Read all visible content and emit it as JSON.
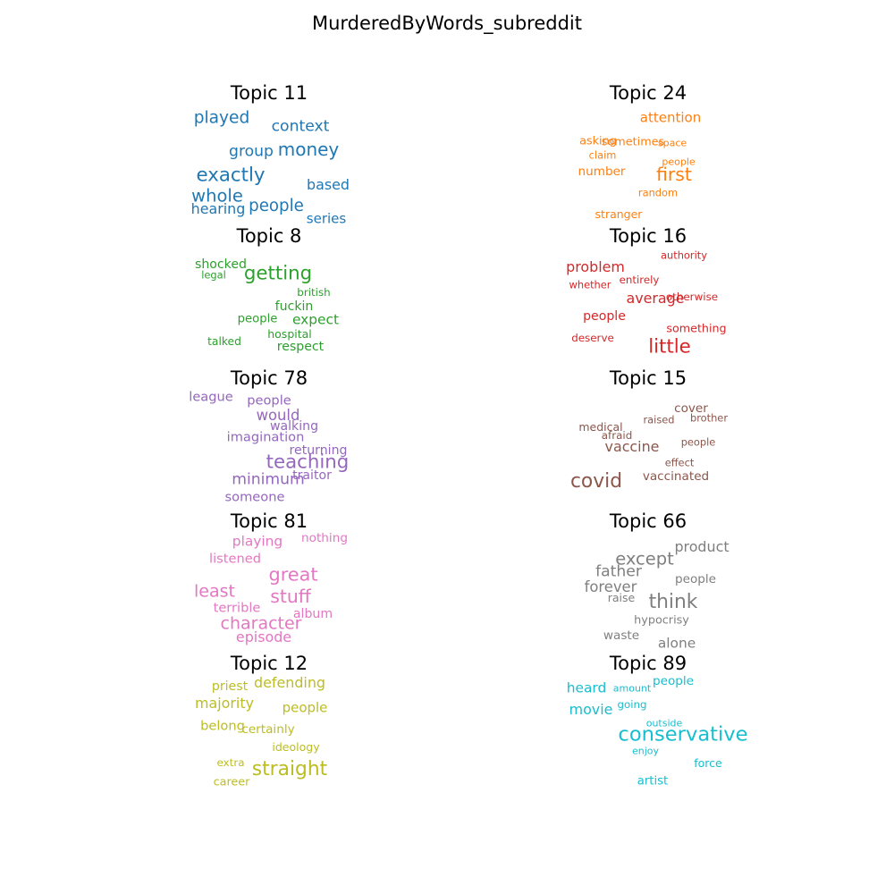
{
  "chart_data": {
    "type": "wordcloud",
    "title": "MurderedByWords_subreddit",
    "panels": [
      {
        "title": "Topic 11",
        "color": "#1f77b4",
        "words": [
          {
            "text": "played",
            "weight": 0.7
          },
          {
            "text": "context",
            "weight": 0.62
          },
          {
            "text": "group",
            "weight": 0.62
          },
          {
            "text": "money",
            "weight": 0.78
          },
          {
            "text": "exactly",
            "weight": 0.85
          },
          {
            "text": "based",
            "weight": 0.55
          },
          {
            "text": "whole",
            "weight": 0.75
          },
          {
            "text": "hearing",
            "weight": 0.55
          },
          {
            "text": "people",
            "weight": 0.68
          },
          {
            "text": "series",
            "weight": 0.5
          }
        ]
      },
      {
        "title": "Topic 24",
        "color": "#ff7f0e",
        "words": [
          {
            "text": "attention",
            "weight": 0.5
          },
          {
            "text": "asking",
            "weight": 0.38
          },
          {
            "text": "sometimes",
            "weight": 0.38
          },
          {
            "text": "space",
            "weight": 0.28
          },
          {
            "text": "claim",
            "weight": 0.3
          },
          {
            "text": "people",
            "weight": 0.28
          },
          {
            "text": "number",
            "weight": 0.42
          },
          {
            "text": "first",
            "weight": 0.8
          },
          {
            "text": "random",
            "weight": 0.3
          },
          {
            "text": "stranger",
            "weight": 0.36
          }
        ]
      },
      {
        "title": "Topic 8",
        "color": "#2ca02c",
        "words": [
          {
            "text": "shocked",
            "weight": 0.45
          },
          {
            "text": "legal",
            "weight": 0.3
          },
          {
            "text": "getting",
            "weight": 0.85
          },
          {
            "text": "british",
            "weight": 0.33
          },
          {
            "text": "fuckin",
            "weight": 0.45
          },
          {
            "text": "expect",
            "weight": 0.52
          },
          {
            "text": "people",
            "weight": 0.4
          },
          {
            "text": "hospital",
            "weight": 0.36
          },
          {
            "text": "talked",
            "weight": 0.35
          },
          {
            "text": "respect",
            "weight": 0.45
          }
        ]
      },
      {
        "title": "Topic 16",
        "color": "#d62728",
        "words": [
          {
            "text": "authority",
            "weight": 0.3
          },
          {
            "text": "problem",
            "weight": 0.55
          },
          {
            "text": "whether",
            "weight": 0.3
          },
          {
            "text": "entirely",
            "weight": 0.32
          },
          {
            "text": "average",
            "weight": 0.55
          },
          {
            "text": "otherwise",
            "weight": 0.33
          },
          {
            "text": "people",
            "weight": 0.45
          },
          {
            "text": "something",
            "weight": 0.37
          },
          {
            "text": "deserve",
            "weight": 0.33
          },
          {
            "text": "little",
            "weight": 0.85
          }
        ]
      },
      {
        "title": "Topic 78",
        "color": "#9467bd",
        "words": [
          {
            "text": "league",
            "weight": 0.48
          },
          {
            "text": "people",
            "weight": 0.48
          },
          {
            "text": "would",
            "weight": 0.58
          },
          {
            "text": "walking",
            "weight": 0.45
          },
          {
            "text": "imagination",
            "weight": 0.48
          },
          {
            "text": "returning",
            "weight": 0.45
          },
          {
            "text": "teaching",
            "weight": 0.85
          },
          {
            "text": "traitor",
            "weight": 0.45
          },
          {
            "text": "minimum",
            "weight": 0.62
          },
          {
            "text": "someone",
            "weight": 0.48
          }
        ]
      },
      {
        "title": "Topic 15",
        "color": "#8c564b",
        "words": [
          {
            "text": "cover",
            "weight": 0.42
          },
          {
            "text": "raised",
            "weight": 0.3
          },
          {
            "text": "brother",
            "weight": 0.3
          },
          {
            "text": "medical",
            "weight": 0.36
          },
          {
            "text": "afraid",
            "weight": 0.33
          },
          {
            "text": "people",
            "weight": 0.3
          },
          {
            "text": "vaccine",
            "weight": 0.55
          },
          {
            "text": "effect",
            "weight": 0.3
          },
          {
            "text": "vaccinated",
            "weight": 0.42
          },
          {
            "text": "covid",
            "weight": 0.88
          }
        ]
      },
      {
        "title": "Topic 81",
        "color": "#e377c2",
        "words": [
          {
            "text": "playing",
            "weight": 0.52
          },
          {
            "text": "nothing",
            "weight": 0.42
          },
          {
            "text": "listened",
            "weight": 0.48
          },
          {
            "text": "great",
            "weight": 0.82
          },
          {
            "text": "least",
            "weight": 0.72
          },
          {
            "text": "stuff",
            "weight": 0.8
          },
          {
            "text": "terrible",
            "weight": 0.48
          },
          {
            "text": "album",
            "weight": 0.45
          },
          {
            "text": "character",
            "weight": 0.72
          },
          {
            "text": "episode",
            "weight": 0.55
          }
        ]
      },
      {
        "title": "Topic 66",
        "color": "#7f7f7f",
        "words": [
          {
            "text": "product",
            "weight": 0.55
          },
          {
            "text": "except",
            "weight": 0.75
          },
          {
            "text": "father",
            "weight": 0.62
          },
          {
            "text": "people",
            "weight": 0.42
          },
          {
            "text": "forever",
            "weight": 0.58
          },
          {
            "text": "think",
            "weight": 0.88
          },
          {
            "text": "raise",
            "weight": 0.36
          },
          {
            "text": "hypocrisy",
            "weight": 0.38
          },
          {
            "text": "waste",
            "weight": 0.42
          },
          {
            "text": "alone",
            "weight": 0.52
          }
        ]
      },
      {
        "title": "Topic 12",
        "color": "#bcbd22",
        "words": [
          {
            "text": "priest",
            "weight": 0.45
          },
          {
            "text": "defending",
            "weight": 0.55
          },
          {
            "text": "majority",
            "weight": 0.55
          },
          {
            "text": "people",
            "weight": 0.5
          },
          {
            "text": "belong",
            "weight": 0.48
          },
          {
            "text": "certainly",
            "weight": 0.42
          },
          {
            "text": "ideology",
            "weight": 0.36
          },
          {
            "text": "extra",
            "weight": 0.33
          },
          {
            "text": "straight",
            "weight": 0.88
          },
          {
            "text": "career",
            "weight": 0.38
          }
        ]
      },
      {
        "title": "Topic 89",
        "color": "#17becf",
        "words": [
          {
            "text": "heard",
            "weight": 0.52
          },
          {
            "text": "amount",
            "weight": 0.28
          },
          {
            "text": "people",
            "weight": 0.42
          },
          {
            "text": "going",
            "weight": 0.32
          },
          {
            "text": "movie",
            "weight": 0.55
          },
          {
            "text": "outside",
            "weight": 0.28
          },
          {
            "text": "conservative",
            "weight": 0.92
          },
          {
            "text": "enjoy",
            "weight": 0.28
          },
          {
            "text": "force",
            "weight": 0.36
          },
          {
            "text": "artist",
            "weight": 0.4
          }
        ]
      }
    ]
  }
}
